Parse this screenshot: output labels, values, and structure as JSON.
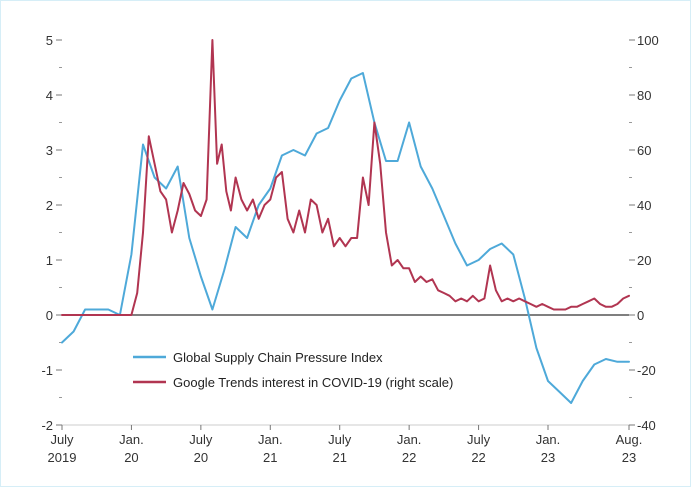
{
  "chart_data": {
    "type": "line",
    "title": "",
    "xlabel": "",
    "ylabel": "",
    "x_ticks": [
      {
        "month_index": 0,
        "line1": "July",
        "line2": "2019"
      },
      {
        "month_index": 6,
        "line1": "Jan.",
        "line2": "20"
      },
      {
        "month_index": 12,
        "line1": "July",
        "line2": "20"
      },
      {
        "month_index": 18,
        "line1": "Jan.",
        "line2": "21"
      },
      {
        "month_index": 24,
        "line1": "July",
        "line2": "21"
      },
      {
        "month_index": 30,
        "line1": "Jan.",
        "line2": "22"
      },
      {
        "month_index": 36,
        "line1": "July",
        "line2": "22"
      },
      {
        "month_index": 42,
        "line1": "Jan.",
        "line2": "23"
      },
      {
        "month_index": 49,
        "line1": "Aug.",
        "line2": "23"
      }
    ],
    "x_range_months": [
      0,
      49
    ],
    "left_axis": {
      "min": -2,
      "max": 5,
      "ticks": [
        "-2",
        "-1",
        "0",
        "1",
        "2",
        "3",
        "4",
        "5"
      ]
    },
    "right_axis": {
      "min": -40,
      "max": 100,
      "ticks": [
        "-40",
        "-20",
        "0",
        "20",
        "40",
        "60",
        "80",
        "100"
      ]
    },
    "legend_position": "lower-center",
    "series": [
      {
        "name": "Global Supply Chain Pressure Index",
        "color": "#4ea9d9",
        "axis": "left",
        "points": [
          [
            0,
            -0.5
          ],
          [
            1,
            -0.3
          ],
          [
            2,
            0.1
          ],
          [
            3,
            0.1
          ],
          [
            4,
            0.1
          ],
          [
            5,
            0.0
          ],
          [
            6,
            1.1
          ],
          [
            7,
            3.1
          ],
          [
            8,
            2.5
          ],
          [
            9,
            2.3
          ],
          [
            10,
            2.7
          ],
          [
            11,
            1.4
          ],
          [
            12,
            0.7
          ],
          [
            13,
            0.1
          ],
          [
            14,
            0.8
          ],
          [
            15,
            1.6
          ],
          [
            16,
            1.4
          ],
          [
            17,
            2.0
          ],
          [
            18,
            2.3
          ],
          [
            19,
            2.9
          ],
          [
            20,
            3.0
          ],
          [
            21,
            2.9
          ],
          [
            22,
            3.3
          ],
          [
            23,
            3.4
          ],
          [
            24,
            3.9
          ],
          [
            25,
            4.3
          ],
          [
            26,
            4.4
          ],
          [
            27,
            3.5
          ],
          [
            28,
            2.8
          ],
          [
            29,
            2.8
          ],
          [
            30,
            3.5
          ],
          [
            31,
            2.7
          ],
          [
            32,
            2.3
          ],
          [
            33,
            1.8
          ],
          [
            34,
            1.3
          ],
          [
            35,
            0.9
          ],
          [
            36,
            1.0
          ],
          [
            37,
            1.2
          ],
          [
            38,
            1.3
          ],
          [
            39,
            1.1
          ],
          [
            40,
            0.3
          ],
          [
            41,
            -0.6
          ],
          [
            42,
            -1.2
          ],
          [
            43,
            -1.4
          ],
          [
            44,
            -1.6
          ],
          [
            45,
            -1.2
          ],
          [
            46,
            -0.9
          ],
          [
            47,
            -0.8
          ],
          [
            48,
            -0.85
          ],
          [
            49,
            -0.85
          ]
        ]
      },
      {
        "name": "Google Trends interest in COVID-19 (right scale)",
        "color": "#b13551",
        "axis": "right",
        "points": [
          [
            0,
            0
          ],
          [
            1,
            0
          ],
          [
            2,
            0
          ],
          [
            3,
            0
          ],
          [
            4,
            0
          ],
          [
            5,
            0
          ],
          [
            6,
            0
          ],
          [
            6.5,
            8
          ],
          [
            7,
            30
          ],
          [
            7.5,
            65
          ],
          [
            8,
            55
          ],
          [
            8.5,
            45
          ],
          [
            9,
            42
          ],
          [
            9.5,
            30
          ],
          [
            10,
            38
          ],
          [
            10.5,
            48
          ],
          [
            11,
            44
          ],
          [
            11.5,
            38
          ],
          [
            12,
            36
          ],
          [
            12.5,
            42
          ],
          [
            13,
            100
          ],
          [
            13.4,
            55
          ],
          [
            13.8,
            62
          ],
          [
            14.2,
            45
          ],
          [
            14.6,
            38
          ],
          [
            15,
            50
          ],
          [
            15.5,
            42
          ],
          [
            16,
            38
          ],
          [
            16.5,
            42
          ],
          [
            17,
            35
          ],
          [
            17.5,
            40
          ],
          [
            18,
            42
          ],
          [
            18.5,
            50
          ],
          [
            19,
            52
          ],
          [
            19.5,
            35
          ],
          [
            20,
            30
          ],
          [
            20.5,
            38
          ],
          [
            21,
            30
          ],
          [
            21.5,
            42
          ],
          [
            22,
            40
          ],
          [
            22.5,
            30
          ],
          [
            23,
            35
          ],
          [
            23.5,
            25
          ],
          [
            24,
            28
          ],
          [
            24.5,
            25
          ],
          [
            25,
            28
          ],
          [
            25.5,
            28
          ],
          [
            26,
            50
          ],
          [
            26.5,
            40
          ],
          [
            27,
            70
          ],
          [
            27.5,
            55
          ],
          [
            28,
            30
          ],
          [
            28.5,
            18
          ],
          [
            29,
            20
          ],
          [
            29.5,
            17
          ],
          [
            30,
            17
          ],
          [
            30.5,
            12
          ],
          [
            31,
            14
          ],
          [
            31.5,
            12
          ],
          [
            32,
            13
          ],
          [
            32.5,
            9
          ],
          [
            33,
            8
          ],
          [
            33.5,
            7
          ],
          [
            34,
            5
          ],
          [
            34.5,
            6
          ],
          [
            35,
            5
          ],
          [
            35.5,
            7
          ],
          [
            36,
            5
          ],
          [
            36.5,
            6
          ],
          [
            37,
            18
          ],
          [
            37.5,
            9
          ],
          [
            38,
            5
          ],
          [
            38.5,
            6
          ],
          [
            39,
            5
          ],
          [
            39.5,
            6
          ],
          [
            40,
            5
          ],
          [
            40.5,
            4
          ],
          [
            41,
            3
          ],
          [
            41.5,
            4
          ],
          [
            42,
            3
          ],
          [
            42.5,
            2
          ],
          [
            43,
            2
          ],
          [
            43.5,
            2
          ],
          [
            44,
            3
          ],
          [
            44.5,
            3
          ],
          [
            45,
            4
          ],
          [
            45.5,
            5
          ],
          [
            46,
            6
          ],
          [
            46.5,
            4
          ],
          [
            47,
            3
          ],
          [
            47.5,
            3
          ],
          [
            48,
            4
          ],
          [
            48.5,
            6
          ],
          [
            49,
            7
          ]
        ]
      }
    ]
  }
}
